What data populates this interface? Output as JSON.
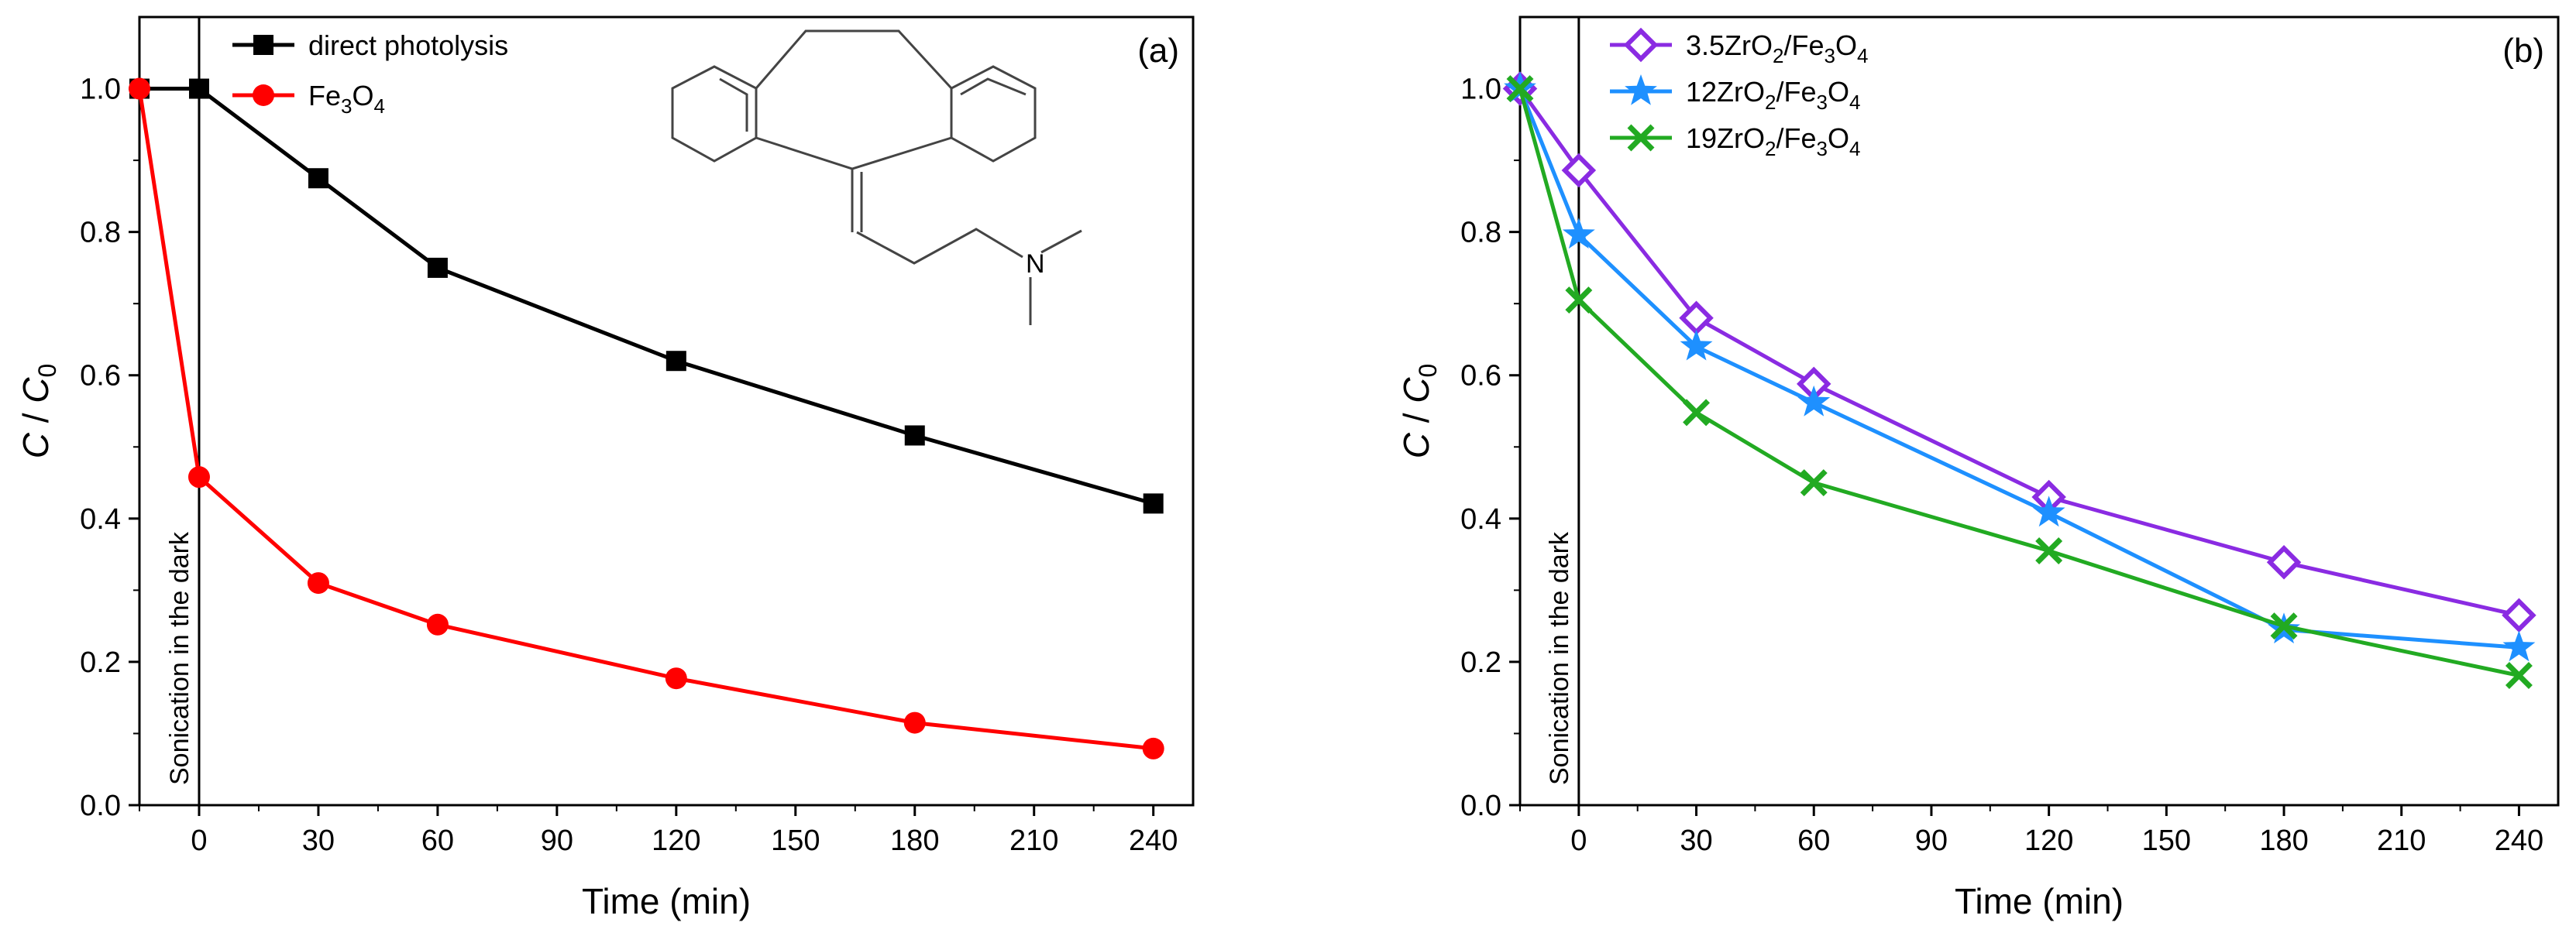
{
  "chart_data": [
    {
      "panel": "a",
      "type": "line",
      "panel_label": "(a)",
      "xlabel": "Time (min)",
      "ylabel_main": "C",
      "ylabel_sep": " / ",
      "ylabel_denom": "C",
      "ylabel_sub": "0",
      "xlim": [
        -15,
        250
      ],
      "ylim": [
        0,
        1.1
      ],
      "xticks": [
        0,
        30,
        60,
        90,
        120,
        150,
        180,
        210,
        240
      ],
      "yticks": [
        0.0,
        0.2,
        0.4,
        0.6,
        0.8,
        1.0
      ],
      "ytick_labels": [
        "0.0",
        "0.2",
        "0.4",
        "0.6",
        "0.8",
        "1.0"
      ],
      "annotation": "Sonication in the dark",
      "divider_x": 0,
      "series": [
        {
          "name": "direct photolysis",
          "legend_parts": [
            {
              "t": "direct photolysis",
              "sub": false
            }
          ],
          "color": "#000000",
          "marker": "square",
          "x": [
            -15,
            0,
            30,
            60,
            120,
            180,
            240
          ],
          "y": [
            1.0,
            1.0,
            0.875,
            0.75,
            0.62,
            0.516,
            0.421
          ]
        },
        {
          "name": "Fe3O4",
          "legend_parts": [
            {
              "t": "Fe",
              "sub": false
            },
            {
              "t": "3",
              "sub": true
            },
            {
              "t": "O",
              "sub": false
            },
            {
              "t": "4",
              "sub": true
            }
          ],
          "color": "#ff0000",
          "marker": "circle",
          "x": [
            -15,
            0,
            30,
            60,
            120,
            180,
            240
          ],
          "y": [
            1.0,
            0.458,
            0.31,
            0.252,
            0.177,
            0.115,
            0.079
          ]
        }
      ]
    },
    {
      "panel": "b",
      "type": "line",
      "panel_label": "(b)",
      "xlabel": "Time (min)",
      "ylabel_main": "C",
      "ylabel_sep": " / ",
      "ylabel_denom": "C",
      "ylabel_sub": "0",
      "xlim": [
        -15,
        250
      ],
      "ylim": [
        0,
        1.1
      ],
      "xticks": [
        0,
        30,
        60,
        90,
        120,
        150,
        180,
        210,
        240
      ],
      "yticks": [
        0.0,
        0.2,
        0.4,
        0.6,
        0.8,
        1.0
      ],
      "ytick_labels": [
        "0.0",
        "0.2",
        "0.4",
        "0.6",
        "0.8",
        "1.0"
      ],
      "annotation": "Sonication in the dark",
      "divider_x": 0,
      "series": [
        {
          "name": "3.5ZrO2/Fe3O4",
          "legend_parts": [
            {
              "t": "3.5ZrO",
              "sub": false
            },
            {
              "t": "2",
              "sub": true
            },
            {
              "t": "/Fe",
              "sub": false
            },
            {
              "t": "3",
              "sub": true
            },
            {
              "t": "O",
              "sub": false
            },
            {
              "t": "4",
              "sub": true
            }
          ],
          "color": "#8a2be2",
          "marker": "diamond",
          "x": [
            -15,
            0,
            30,
            60,
            120,
            180,
            240
          ],
          "y": [
            1.0,
            0.886,
            0.68,
            0.588,
            0.43,
            0.339,
            0.265
          ]
        },
        {
          "name": "12ZrO2/Fe3O4",
          "legend_parts": [
            {
              "t": "12ZrO",
              "sub": false
            },
            {
              "t": "2",
              "sub": true
            },
            {
              "t": "/Fe",
              "sub": false
            },
            {
              "t": "3",
              "sub": true
            },
            {
              "t": "O",
              "sub": false
            },
            {
              "t": "4",
              "sub": true
            }
          ],
          "color": "#1e90ff",
          "marker": "star",
          "x": [
            -15,
            0,
            30,
            60,
            120,
            180,
            240
          ],
          "y": [
            1.0,
            0.796,
            0.64,
            0.562,
            0.408,
            0.245,
            0.22
          ]
        },
        {
          "name": "19ZrO2/Fe3O4",
          "legend_parts": [
            {
              "t": "19ZrO",
              "sub": false
            },
            {
              "t": "2",
              "sub": true
            },
            {
              "t": "/Fe",
              "sub": false
            },
            {
              "t": "3",
              "sub": true
            },
            {
              "t": "O",
              "sub": false
            },
            {
              "t": "4",
              "sub": true
            }
          ],
          "color": "#22aa22",
          "marker": "x",
          "x": [
            -15,
            0,
            30,
            60,
            120,
            180,
            240
          ],
          "y": [
            1.0,
            0.705,
            0.548,
            0.45,
            0.355,
            0.25,
            0.181
          ]
        }
      ]
    }
  ],
  "structure_labels": {
    "nitrogen": "N"
  }
}
